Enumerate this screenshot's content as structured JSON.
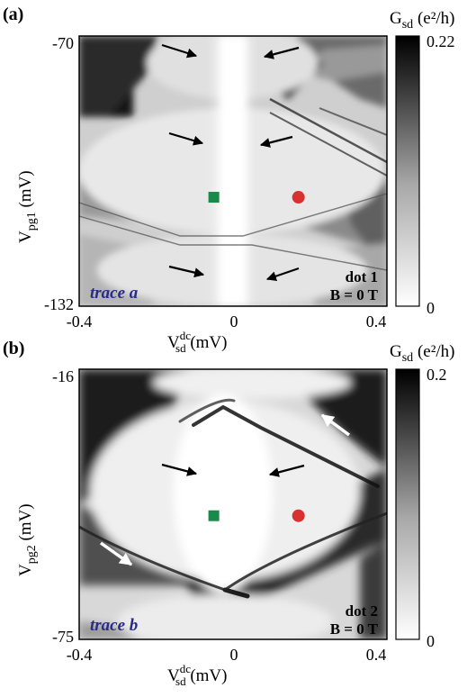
{
  "chart_data": [
    {
      "type": "heatmap",
      "panel_label": "(a)",
      "xlabel": "V_sd^dc (mV)",
      "ylabel": "Vpg1 (mV)",
      "x_ticks": [
        "-0.4",
        "0",
        "0.4"
      ],
      "y_ticks": [
        "-70",
        "-132"
      ],
      "xlim": [
        -0.4,
        0.4
      ],
      "ylim": [
        -132,
        -70
      ],
      "colorbar": {
        "label": "G_sd (e²/h)",
        "min_label": "0",
        "max_label": "0.22",
        "min": 0,
        "max": 0.22,
        "colormap": "white-to-black"
      },
      "annotations": {
        "trace": "trace a",
        "dot": "dot 1",
        "field": "B = 0 T"
      },
      "markers": [
        {
          "shape": "square",
          "color": "#1a8a4a",
          "x": -0.05,
          "y": -107
        },
        {
          "shape": "circle",
          "color": "#d93030",
          "x": 0.17,
          "y": -107
        }
      ],
      "arrow_count": 6
    },
    {
      "type": "heatmap",
      "panel_label": "(b)",
      "xlabel": "V_sd^dc (mV)",
      "ylabel": "Vpg2 (mV)",
      "x_ticks": [
        "-0.4",
        "0",
        "0.4"
      ],
      "y_ticks": [
        "-16",
        "-75"
      ],
      "xlim": [
        -0.4,
        0.4
      ],
      "ylim": [
        -75,
        -16
      ],
      "colorbar": {
        "label": "G_sd (e²/h)",
        "min_label": "0",
        "max_label": "0.2",
        "min": 0,
        "max": 0.2,
        "colormap": "white-to-black"
      },
      "annotations": {
        "trace": "trace b",
        "dot": "dot 2",
        "field": "B = 0 T"
      },
      "markers": [
        {
          "shape": "square",
          "color": "#1a8a4a",
          "x": -0.05,
          "y": -48
        },
        {
          "shape": "circle",
          "color": "#d93030",
          "x": 0.17,
          "y": -48
        }
      ],
      "arrow_count": 4
    }
  ],
  "text": {
    "a_label": "(a)",
    "b_label": "(b)",
    "gsd": "G",
    "gsd_sub": "sd",
    "gsd_unit": " (e²/h)",
    "a_ymax": "-70",
    "a_ymin": "-132",
    "b_ymax": "-16",
    "b_ymin": "-75",
    "x_left": "-0.4",
    "x_mid": "0",
    "x_right": "0.4",
    "a_cb_max": "0.22",
    "a_cb_min": "0",
    "b_cb_max": "0.2",
    "b_cb_min": "0",
    "v": "V",
    "sd_sup": "dc",
    "sd_sub": "sd",
    "mv": " (mV)",
    "vpg1_main": "V",
    "vpg1_sub": "pg1",
    "vpg_unit": " (mV)",
    "vpg2_sub": "pg2",
    "trace_a_word": "trace ",
    "trace_a_letter": "a",
    "trace_b_word": "trace ",
    "trace_b_letter": "b",
    "dot1": "dot 1",
    "dot2": "dot 2",
    "b_field": "B = 0 T"
  }
}
